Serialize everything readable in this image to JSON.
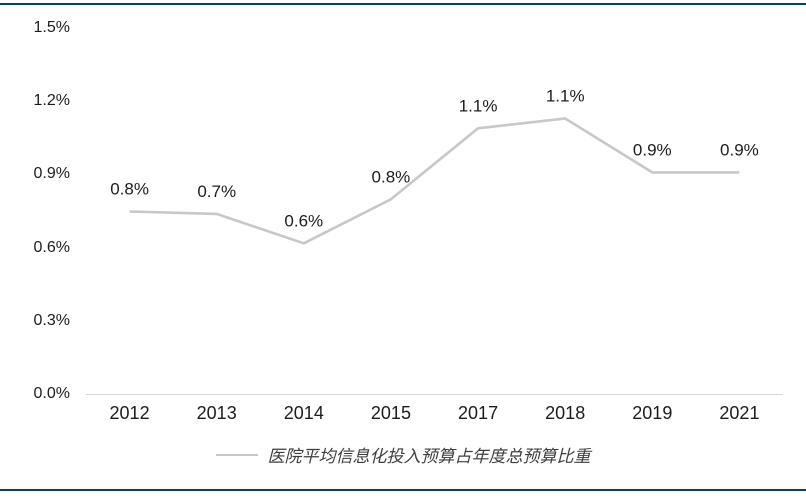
{
  "panel": {
    "background": "#ffffff",
    "rule_color": "#0e3d60"
  },
  "chart_data": {
    "type": "line",
    "title": "",
    "xlabel": "",
    "ylabel": "",
    "categories": [
      "2012",
      "2013",
      "2014",
      "2015",
      "2017",
      "2018",
      "2019",
      "2021"
    ],
    "series": [
      {
        "name": "医院平均信息化投入预算占年度总预算比重",
        "values": [
          0.8,
          0.7,
          0.6,
          0.8,
          1.1,
          1.1,
          0.9,
          0.9
        ],
        "plot_values_pct": [
          0.75,
          0.74,
          0.62,
          0.8,
          1.09,
          1.13,
          0.91,
          0.91
        ],
        "color": "#c8c8c8"
      }
    ],
    "data_labels": [
      "0.8%",
      "0.7%",
      "0.6%",
      "0.8%",
      "1.1%",
      "1.1%",
      "0.9%",
      "0.9%"
    ],
    "y_ticks": [
      "0.0%",
      "0.3%",
      "0.6%",
      "0.9%",
      "1.2%",
      "1.5%"
    ],
    "ylim": [
      0,
      1.5
    ],
    "y_unit": "%",
    "grid": false,
    "legend_position": "bottom",
    "label_color": "#1c1c1c",
    "axis_color": "#d6d6d6"
  }
}
